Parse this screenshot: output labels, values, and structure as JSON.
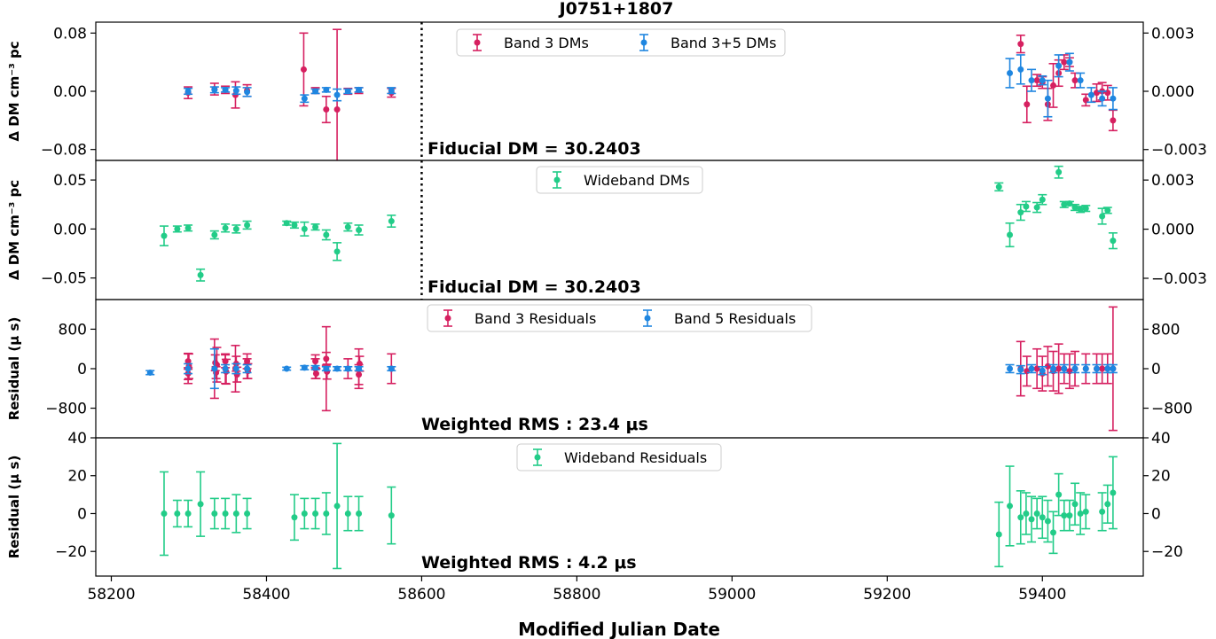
{
  "figure": {
    "title": "J0751+1807",
    "xlabel": "Modified Julian Date",
    "xlim": [
      58180,
      59530
    ],
    "xticks": [
      58200,
      58400,
      58600,
      58800,
      59000,
      59200,
      59400
    ],
    "vline_x": 58600
  },
  "colors": {
    "band3": "#d62060",
    "band5": "#1f86e0",
    "wideband": "#22cc88"
  },
  "chart_data": [
    {
      "type": "scatter",
      "panel": "dm-narrowband",
      "ylabel": "Δ DM  cm⁻³ pc",
      "ylim": [
        -0.095,
        0.095
      ],
      "yticks": [
        -0.08,
        0.0,
        0.08
      ],
      "yticklabels": [
        "−0.08",
        "0.00",
        "0.08"
      ],
      "right_ylim": [
        -0.00356,
        0.00356
      ],
      "right_yticks": [
        -0.003,
        0.0,
        0.003
      ],
      "right_yticklabels": [
        "−0.003",
        "0.000",
        "0.003"
      ],
      "annotation": "Fiducial DM = 30.2403",
      "legend": [
        "Band 3 DMs",
        "Band 3+5 DMs"
      ],
      "series": [
        {
          "name": "Band 3 DMs",
          "color_key": "band3",
          "points": [
            [
              58299,
              -0.002,
              0.008
            ],
            [
              58333,
              0.003,
              0.008
            ],
            [
              58347,
              0.002,
              0.005
            ],
            [
              58360,
              -0.005,
              0.018
            ],
            [
              58375,
              0.001,
              0.008
            ],
            [
              58448,
              0.03,
              0.05
            ],
            [
              58463,
              0.001,
              0.004
            ],
            [
              58477,
              -0.025,
              0.018
            ],
            [
              58491,
              -0.025,
              0.11
            ],
            [
              58505,
              0.0,
              0.004
            ],
            [
              58519,
              0.001,
              0.004
            ],
            [
              58561,
              -0.002,
              0.006
            ],
            [
              59372,
              0.065,
              0.012
            ],
            [
              59380,
              -0.018,
              0.025
            ],
            [
              59393,
              0.015,
              0.008
            ],
            [
              59400,
              0.012,
              0.008
            ],
            [
              59407,
              -0.018,
              0.022
            ],
            [
              59414,
              0.008,
              0.03
            ],
            [
              59421,
              0.025,
              0.018
            ],
            [
              59428,
              0.04,
              0.01
            ],
            [
              59435,
              0.04,
              0.006
            ],
            [
              59442,
              0.015,
              0.01
            ],
            [
              59456,
              -0.012,
              0.008
            ],
            [
              59470,
              -0.002,
              0.012
            ],
            [
              59477,
              0.0,
              0.012
            ],
            [
              59484,
              -0.002,
              0.01
            ],
            [
              59491,
              -0.04,
              0.014
            ]
          ]
        },
        {
          "name": "Band 3+5 DMs",
          "color_key": "band5",
          "points": [
            [
              58299,
              0.0,
              0.004
            ],
            [
              58333,
              0.002,
              0.004
            ],
            [
              58347,
              0.002,
              0.003
            ],
            [
              58361,
              0.001,
              0.005
            ],
            [
              58375,
              -0.001,
              0.006
            ],
            [
              58449,
              -0.01,
              0.005
            ],
            [
              58463,
              0.0,
              0.003
            ],
            [
              58477,
              0.002,
              0.003
            ],
            [
              58491,
              -0.005,
              0.008
            ],
            [
              58505,
              0.0,
              0.003
            ],
            [
              58519,
              0.002,
              0.003
            ],
            [
              58561,
              0.001,
              0.004
            ],
            [
              59358,
              0.025,
              0.02
            ],
            [
              59372,
              0.03,
              0.02
            ],
            [
              59386,
              0.015,
              0.015
            ],
            [
              59400,
              0.015,
              0.006
            ],
            [
              59407,
              -0.01,
              0.025
            ],
            [
              59421,
              0.035,
              0.015
            ],
            [
              59435,
              0.04,
              0.012
            ],
            [
              59449,
              0.015,
              0.01
            ],
            [
              59463,
              -0.005,
              0.01
            ],
            [
              59477,
              -0.01,
              0.01
            ],
            [
              59491,
              -0.01,
              0.015
            ]
          ]
        }
      ]
    },
    {
      "type": "scatter",
      "panel": "dm-wideband",
      "ylabel": "Δ DM  cm⁻³ pc",
      "ylim": [
        -0.072,
        0.07
      ],
      "yticks": [
        -0.05,
        0.0,
        0.05
      ],
      "yticklabels": [
        "−0.05",
        "0.00",
        "0.05"
      ],
      "right_ylim": [
        -0.0043,
        0.0042
      ],
      "right_yticks": [
        -0.003,
        0.0,
        0.003
      ],
      "right_yticklabels": [
        "−0.003",
        "0.000",
        "0.003"
      ],
      "annotation": "Fiducial DM = 30.2403",
      "legend": [
        "Wideband DMs"
      ],
      "series": [
        {
          "name": "Wideband DMs",
          "color_key": "wideband",
          "points": [
            [
              58268,
              -0.007,
              0.01
            ],
            [
              58285,
              0.0,
              0.003
            ],
            [
              58299,
              0.001,
              0.003
            ],
            [
              58315,
              -0.047,
              0.006
            ],
            [
              58333,
              -0.006,
              0.004
            ],
            [
              58347,
              0.001,
              0.004
            ],
            [
              58361,
              0.0,
              0.004
            ],
            [
              58375,
              0.004,
              0.004
            ],
            [
              58426,
              0.006,
              0.002
            ],
            [
              58436,
              0.004,
              0.003
            ],
            [
              58449,
              0.0,
              0.007
            ],
            [
              58463,
              0.002,
              0.003
            ],
            [
              58477,
              -0.006,
              0.005
            ],
            [
              58491,
              -0.023,
              0.009
            ],
            [
              58505,
              0.002,
              0.004
            ],
            [
              58519,
              -0.001,
              0.005
            ],
            [
              58561,
              0.008,
              0.006
            ],
            [
              59344,
              0.043,
              0.004
            ],
            [
              59358,
              -0.006,
              0.012
            ],
            [
              59372,
              0.017,
              0.008
            ],
            [
              59379,
              0.023,
              0.005
            ],
            [
              59393,
              0.022,
              0.005
            ],
            [
              59400,
              0.03,
              0.005
            ],
            [
              59421,
              0.058,
              0.006
            ],
            [
              59428,
              0.025,
              0.003
            ],
            [
              59435,
              0.026,
              0.002
            ],
            [
              59442,
              0.022,
              0.003
            ],
            [
              59449,
              0.02,
              0.003
            ],
            [
              59456,
              0.021,
              0.003
            ],
            [
              59477,
              0.013,
              0.008
            ],
            [
              59484,
              0.019,
              0.003
            ],
            [
              59491,
              -0.012,
              0.008
            ]
          ]
        }
      ]
    },
    {
      "type": "scatter",
      "panel": "residual-narrowband",
      "ylabel": "Residual (μ s)",
      "ylim": [
        -1400,
        1400
      ],
      "yticks": [
        -800,
        0,
        800
      ],
      "yticklabels": [
        "−800",
        "0",
        "800"
      ],
      "right_ylim": [
        -1400,
        1400
      ],
      "right_yticks": [
        -800,
        0,
        800
      ],
      "right_yticklabels": [
        "−800",
        "0",
        "800"
      ],
      "annotation": "Weighted RMS : 23.4 μs",
      "legend": [
        "Band 3 Residuals",
        "Band 5 Residuals"
      ],
      "series": [
        {
          "name": "Band 3 Residuals",
          "color_key": "band3",
          "points": [
            [
              58299,
              0,
              300
            ],
            [
              58299,
              150,
              160
            ],
            [
              58299,
              -100,
              120
            ],
            [
              58300,
              50,
              250
            ],
            [
              58333,
              0,
              600
            ],
            [
              58334,
              120,
              160
            ],
            [
              58335,
              -80,
              120
            ],
            [
              58336,
              80,
              350
            ],
            [
              58347,
              0,
              300
            ],
            [
              58347,
              150,
              130
            ],
            [
              58348,
              -60,
              250
            ],
            [
              58360,
              0,
              470
            ],
            [
              58361,
              100,
              150
            ],
            [
              58362,
              -120,
              150
            ],
            [
              58375,
              0,
              200
            ],
            [
              58375,
              150,
              150
            ],
            [
              58376,
              -50,
              150
            ],
            [
              58463,
              0,
              200
            ],
            [
              58463,
              150,
              130
            ],
            [
              58464,
              -100,
              100
            ],
            [
              58477,
              0,
              850
            ],
            [
              58477,
              200,
              130
            ],
            [
              58478,
              -60,
              150
            ],
            [
              58505,
              0,
              200
            ],
            [
              58519,
              0,
              400
            ],
            [
              58519,
              -120,
              200
            ],
            [
              58520,
              100,
              150
            ],
            [
              58561,
              0,
              300
            ],
            [
              59372,
              0,
              550
            ],
            [
              59380,
              -50,
              300
            ],
            [
              59393,
              0,
              400
            ],
            [
              59400,
              -100,
              350
            ],
            [
              59407,
              50,
              400
            ],
            [
              59414,
              -50,
              400
            ],
            [
              59421,
              0,
              500
            ],
            [
              59428,
              0,
              300
            ],
            [
              59435,
              -50,
              350
            ],
            [
              59442,
              0,
              350
            ],
            [
              59456,
              0,
              300
            ],
            [
              59470,
              0,
              300
            ],
            [
              59477,
              0,
              300
            ],
            [
              59484,
              0,
              300
            ],
            [
              59491,
              0,
              1250
            ]
          ]
        },
        {
          "name": "Band 5 Residuals",
          "color_key": "band5",
          "points": [
            [
              58250,
              -80,
              40
            ],
            [
              58299,
              0,
              100
            ],
            [
              58333,
              0,
              400
            ],
            [
              58347,
              0,
              80
            ],
            [
              58361,
              0,
              100
            ],
            [
              58375,
              0,
              80
            ],
            [
              58426,
              0,
              30
            ],
            [
              58449,
              20,
              40
            ],
            [
              58463,
              20,
              40
            ],
            [
              58477,
              0,
              40
            ],
            [
              58491,
              0,
              40
            ],
            [
              58505,
              0,
              40
            ],
            [
              58519,
              0,
              40
            ],
            [
              58561,
              0,
              40
            ],
            [
              59358,
              0,
              80
            ],
            [
              59372,
              -20,
              80
            ],
            [
              59386,
              0,
              80
            ],
            [
              59400,
              -40,
              80
            ],
            [
              59414,
              0,
              80
            ],
            [
              59428,
              0,
              80
            ],
            [
              59442,
              0,
              80
            ],
            [
              59456,
              0,
              80
            ],
            [
              59470,
              0,
              80
            ],
            [
              59484,
              0,
              80
            ],
            [
              59491,
              0,
              80
            ]
          ]
        }
      ]
    },
    {
      "type": "scatter",
      "panel": "residual-wideband",
      "ylabel": "Residual (μ s)",
      "ylim": [
        -33,
        40
      ],
      "yticks": [
        -20,
        0,
        20,
        40
      ],
      "yticklabels": [
        "−20",
        "0",
        "20",
        "40"
      ],
      "right_ylim": [
        -33,
        40
      ],
      "right_yticks": [
        -20,
        0,
        20,
        40
      ],
      "right_yticklabels": [
        "−20",
        "0",
        "20",
        "40"
      ],
      "annotation": "Weighted RMS : 4.2 μs",
      "legend": [
        "Wideband Residuals"
      ],
      "series": [
        {
          "name": "Wideband Residuals",
          "color_key": "wideband",
          "points": [
            [
              58268,
              0,
              22
            ],
            [
              58285,
              0,
              7
            ],
            [
              58299,
              0,
              7
            ],
            [
              58315,
              5,
              17
            ],
            [
              58333,
              0,
              8
            ],
            [
              58347,
              0,
              8
            ],
            [
              58361,
              0,
              10
            ],
            [
              58375,
              0,
              8
            ],
            [
              58436,
              -2,
              12
            ],
            [
              58449,
              0,
              8
            ],
            [
              58463,
              0,
              8
            ],
            [
              58477,
              0,
              11
            ],
            [
              58491,
              4,
              33
            ],
            [
              58505,
              0,
              9
            ],
            [
              58519,
              0,
              9
            ],
            [
              58561,
              -1,
              15
            ],
            [
              59344,
              -11,
              17
            ],
            [
              59358,
              4,
              21
            ],
            [
              59372,
              -2,
              14
            ],
            [
              59379,
              0,
              11
            ],
            [
              59386,
              -3,
              12
            ],
            [
              59393,
              0,
              8
            ],
            [
              59400,
              -2,
              11
            ],
            [
              59407,
              -4,
              11
            ],
            [
              59414,
              -10,
              11
            ],
            [
              59421,
              10,
              11
            ],
            [
              59428,
              -1,
              8
            ],
            [
              59435,
              -1,
              8
            ],
            [
              59442,
              5,
              11
            ],
            [
              59449,
              0,
              11
            ],
            [
              59456,
              1,
              9
            ],
            [
              59477,
              1,
              10
            ],
            [
              59484,
              5,
              10
            ],
            [
              59491,
              11,
              19
            ]
          ]
        }
      ]
    }
  ]
}
